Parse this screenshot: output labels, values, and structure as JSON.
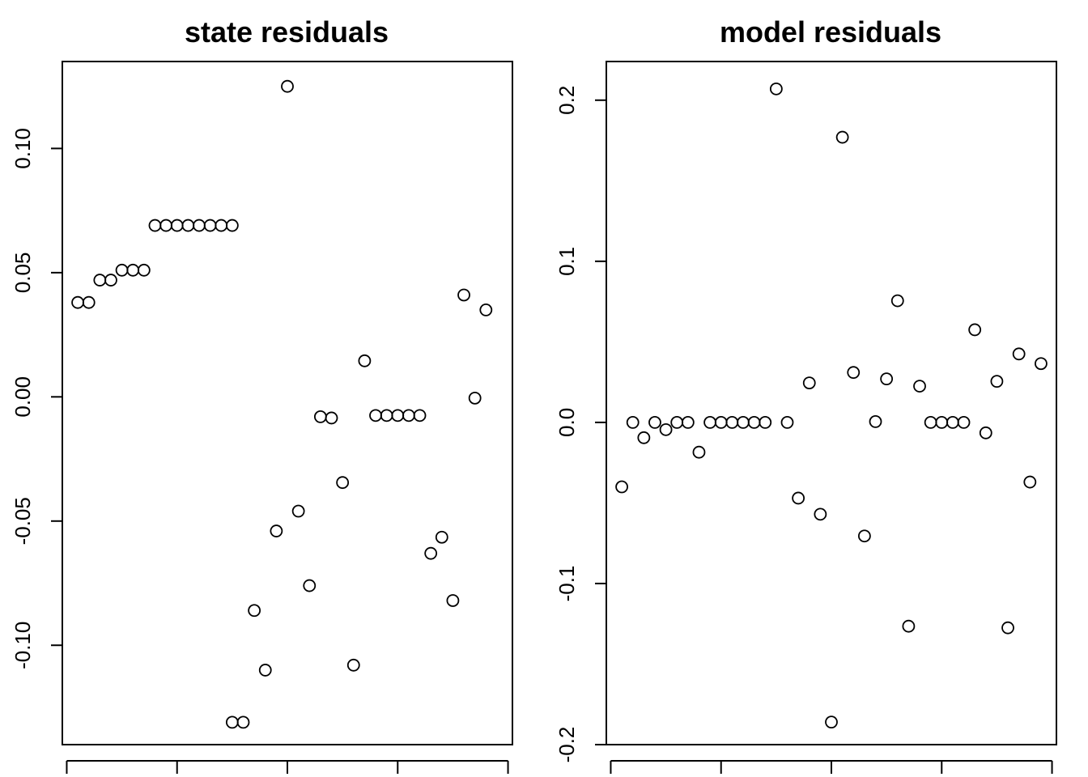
{
  "chart_data": [
    {
      "type": "scatter",
      "title": "state residuals",
      "xlabel": "",
      "ylabel": "",
      "xlim": [
        0.6,
        41.4
      ],
      "ylim": [
        -0.14,
        0.135
      ],
      "y_ticks": [
        -0.1,
        -0.05,
        0.0,
        0.05,
        0.1
      ],
      "y_tick_labels": [
        "-0.10",
        "-0.05",
        "0.00",
        "0.05",
        "0.10"
      ],
      "x_ticks": [
        1,
        11,
        21,
        31,
        41
      ],
      "grid": false,
      "points": [
        {
          "x": 2,
          "y": 0.038
        },
        {
          "x": 3,
          "y": 0.038
        },
        {
          "x": 4,
          "y": 0.047
        },
        {
          "x": 5,
          "y": 0.047
        },
        {
          "x": 6,
          "y": 0.051
        },
        {
          "x": 7,
          "y": 0.051
        },
        {
          "x": 8,
          "y": 0.051
        },
        {
          "x": 9,
          "y": 0.069
        },
        {
          "x": 10,
          "y": 0.069
        },
        {
          "x": 11,
          "y": 0.069
        },
        {
          "x": 12,
          "y": 0.069
        },
        {
          "x": 13,
          "y": 0.069
        },
        {
          "x": 14,
          "y": 0.069
        },
        {
          "x": 15,
          "y": 0.069
        },
        {
          "x": 16,
          "y": 0.069
        },
        {
          "x": 16,
          "y": -0.131
        },
        {
          "x": 17,
          "y": -0.131
        },
        {
          "x": 18,
          "y": -0.086
        },
        {
          "x": 19,
          "y": -0.11
        },
        {
          "x": 20,
          "y": -0.054
        },
        {
          "x": 21,
          "y": 0.125
        },
        {
          "x": 22,
          "y": -0.046
        },
        {
          "x": 23,
          "y": -0.076
        },
        {
          "x": 24,
          "y": -0.008
        },
        {
          "x": 25,
          "y": -0.0085
        },
        {
          "x": 26,
          "y": -0.0345
        },
        {
          "x": 27,
          "y": -0.108
        },
        {
          "x": 28,
          "y": 0.0145
        },
        {
          "x": 29,
          "y": -0.0075
        },
        {
          "x": 30,
          "y": -0.0075
        },
        {
          "x": 31,
          "y": -0.0075
        },
        {
          "x": 32,
          "y": -0.0075
        },
        {
          "x": 33,
          "y": -0.0075
        },
        {
          "x": 34,
          "y": -0.063
        },
        {
          "x": 35,
          "y": -0.0565
        },
        {
          "x": 36,
          "y": -0.082
        },
        {
          "x": 37,
          "y": 0.041
        },
        {
          "x": 38,
          "y": -0.0005
        },
        {
          "x": 39,
          "y": 0.035
        }
      ]
    },
    {
      "type": "scatter",
      "title": "model residuals",
      "xlabel": "",
      "ylabel": "",
      "xlim": [
        0.6,
        41.4
      ],
      "ylim": [
        -0.2,
        0.224
      ],
      "y_ticks": [
        -0.2,
        -0.1,
        0.0,
        0.1,
        0.2
      ],
      "y_tick_labels": [
        "-0.2",
        "-0.1",
        "0.0",
        "0.1",
        "0.2"
      ],
      "x_ticks": [
        1,
        11,
        21,
        31,
        41
      ],
      "grid": false,
      "points": [
        {
          "x": 2,
          "y": -0.04
        },
        {
          "x": 3,
          "y": 0.0
        },
        {
          "x": 4,
          "y": -0.0095
        },
        {
          "x": 5,
          "y": 0.0
        },
        {
          "x": 6,
          "y": -0.0045
        },
        {
          "x": 7,
          "y": 0.0
        },
        {
          "x": 8,
          "y": 0.0
        },
        {
          "x": 9,
          "y": -0.0185
        },
        {
          "x": 10,
          "y": 0.0
        },
        {
          "x": 11,
          "y": 0.0
        },
        {
          "x": 12,
          "y": 0.0
        },
        {
          "x": 13,
          "y": 0.0
        },
        {
          "x": 14,
          "y": 0.0
        },
        {
          "x": 15,
          "y": 0.0
        },
        {
          "x": 16,
          "y": 0.207
        },
        {
          "x": 17,
          "y": 0.0
        },
        {
          "x": 18,
          "y": -0.047
        },
        {
          "x": 19,
          "y": 0.0245
        },
        {
          "x": 20,
          "y": -0.057
        },
        {
          "x": 21,
          "y": -0.186
        },
        {
          "x": 22,
          "y": 0.177
        },
        {
          "x": 23,
          "y": 0.031
        },
        {
          "x": 24,
          "y": -0.0705
        },
        {
          "x": 25,
          "y": 0.0005
        },
        {
          "x": 26,
          "y": 0.027
        },
        {
          "x": 27,
          "y": 0.0755
        },
        {
          "x": 28,
          "y": -0.1265
        },
        {
          "x": 29,
          "y": 0.0225
        },
        {
          "x": 30,
          "y": 0.0
        },
        {
          "x": 31,
          "y": 0.0
        },
        {
          "x": 32,
          "y": 0.0
        },
        {
          "x": 33,
          "y": 0.0
        },
        {
          "x": 34,
          "y": 0.0575
        },
        {
          "x": 35,
          "y": -0.0065
        },
        {
          "x": 36,
          "y": 0.0255
        },
        {
          "x": 37,
          "y": -0.1275
        },
        {
          "x": 38,
          "y": 0.0425
        },
        {
          "x": 39,
          "y": -0.037
        },
        {
          "x": 40,
          "y": 0.0365
        }
      ]
    }
  ]
}
